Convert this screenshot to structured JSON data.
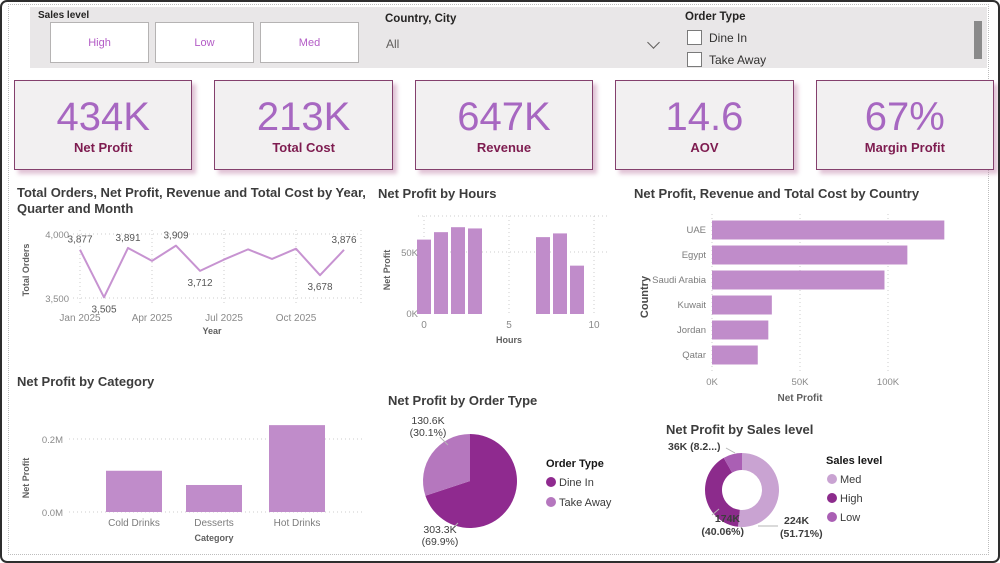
{
  "filters": {
    "sales_level": {
      "label": "Sales level",
      "options": [
        "High",
        "Low",
        "Med"
      ]
    },
    "country_city": {
      "label": "Country, City",
      "value": "All"
    },
    "order_type": {
      "label": "Order Type",
      "options": [
        "Dine In",
        "Take Away"
      ]
    }
  },
  "kpis": [
    {
      "value": "434K",
      "label": "Net Profit"
    },
    {
      "value": "213K",
      "label": "Total Cost"
    },
    {
      "value": "647K",
      "label": "Revenue"
    },
    {
      "value": "14.6",
      "label": "AOV"
    },
    {
      "value": "67%",
      "label": "Margin Profit"
    }
  ],
  "colors": {
    "bar": "#c08cca",
    "line": "#c793d1",
    "kpi_value": "#a767c1",
    "kpi_label": "#7e1c50",
    "filter_text": "#b35cc6",
    "pie_dark": "#8f2a8f",
    "pie_light": "#b577be",
    "donut_med": "#c9a3d2",
    "donut_high": "#8c2b8c",
    "donut_low": "#aa5fb4"
  },
  "chart_data": [
    {
      "type": "line",
      "title": "Total Orders, Net Profit, Revenue and Total Cost by Year, Quarter and Month",
      "xlabel": "Year",
      "ylabel": "Total Orders",
      "categories": [
        "Jan 2025",
        "Feb 2025",
        "Mar 2025",
        "Apr 2025",
        "May 2025",
        "Jun 2025",
        "Jul 2025",
        "Aug 2025",
        "Sep 2025",
        "Oct 2025",
        "Nov 2025",
        "Dec 2025"
      ],
      "values": [
        3877,
        3505,
        3891,
        3790,
        3909,
        3712,
        3800,
        3880,
        3805,
        3885,
        3678,
        3876
      ],
      "point_labels": [
        {
          "index": 0,
          "text": "3,877",
          "position": "above"
        },
        {
          "index": 1,
          "text": "3,505",
          "position": "below"
        },
        {
          "index": 2,
          "text": "3,891",
          "position": "above"
        },
        {
          "index": 4,
          "text": "3,909",
          "position": "above"
        },
        {
          "index": 5,
          "text": "3,712",
          "position": "below"
        },
        {
          "index": 10,
          "text": "3,678",
          "position": "below"
        },
        {
          "index": 11,
          "text": "3,876",
          "position": "above"
        }
      ],
      "x_ticks": [
        "Jan 2025",
        "Apr 2025",
        "Jul 2025",
        "Oct 2025"
      ],
      "y_ticks": [
        "3,500",
        "4,000"
      ],
      "ylim": [
        3500,
        4000
      ]
    },
    {
      "type": "bar",
      "title": "Net Profit by Hours",
      "xlabel": "Hours",
      "ylabel": "Net Profit",
      "x": [
        0,
        1,
        2,
        3,
        7,
        8,
        9
      ],
      "values_k": [
        60,
        66,
        70,
        69,
        62,
        65,
        39
      ],
      "x_ticks": [
        "0",
        "5",
        "10"
      ],
      "y_ticks": [
        "0K",
        "50K"
      ],
      "xlim": [
        0,
        10
      ],
      "ylim_k": [
        0,
        80
      ]
    },
    {
      "type": "bar-horizontal",
      "title": "Net Profit, Revenue and Total Cost by Country",
      "xlabel": "Net Profit",
      "ylabel": "Country",
      "categories": [
        "UAE",
        "Egypt",
        "Saudi Arabia",
        "Kuwait",
        "Jordan",
        "Qatar"
      ],
      "values_k": [
        132,
        111,
        98,
        34,
        32,
        26
      ],
      "x_ticks": [
        "0K",
        "50K",
        "100K"
      ],
      "xlim_k": [
        0,
        140
      ]
    },
    {
      "type": "bar",
      "title": "Net Profit by Category",
      "xlabel": "Category",
      "ylabel": "Net Profit",
      "categories": [
        "Cold Drinks",
        "Desserts",
        "Hot Drinks"
      ],
      "values_m": [
        0.113,
        0.074,
        0.238
      ],
      "y_ticks": [
        "0.0M",
        "0.2M"
      ],
      "ylim_m": [
        0,
        0.26
      ]
    },
    {
      "type": "pie",
      "title": "Net Profit by Order Type",
      "legend_title": "Order Type",
      "slices": [
        {
          "name": "Dine In",
          "value_label": "303.3K",
          "pct": 69.9,
          "pct_label": "(69.9%)",
          "color": "#8f2a8f"
        },
        {
          "name": "Take Away",
          "value_label": "130.6K",
          "pct": 30.1,
          "pct_label": "(30.1%)",
          "color": "#b577be"
        }
      ]
    },
    {
      "type": "donut",
      "title": "Net Profit by Sales level",
      "legend_title": "Sales level",
      "slices": [
        {
          "name": "Med",
          "value_label": "224K",
          "pct": 51.71,
          "pct_label": "(51.71%)",
          "color": "#c9a3d2"
        },
        {
          "name": "High",
          "value_label": "174K",
          "pct": 40.06,
          "pct_label": "(40.06%)",
          "color": "#8c2b8c"
        },
        {
          "name": "Low",
          "value_label": "36K",
          "pct": 8.23,
          "pct_label": "(8.2...)",
          "color": "#aa5fb4"
        }
      ]
    }
  ]
}
